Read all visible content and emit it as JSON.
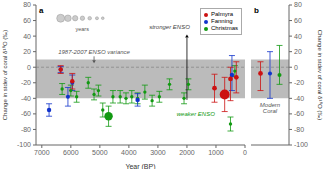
{
  "chart_data": [
    {
      "type": "scatter",
      "x_label": "Year (BP)",
      "y_label": "Change in stdev of coral δ¹⁸O (‰)",
      "panel_label": "a",
      "xlim": [
        7200,
        0
      ],
      "xticks": [
        7000,
        6000,
        5000,
        4000,
        3000,
        2000,
        1000,
        0
      ],
      "ylim": [
        -100,
        80
      ],
      "yticks": [
        -100,
        -80,
        -60,
        -40,
        -20,
        0,
        20,
        40,
        60,
        80
      ],
      "grid": false,
      "legend": "upper right",
      "series": [
        {
          "name": "Palmyra",
          "color": "#cc1111",
          "x": [
            6350,
            5950,
            1050,
            700,
            500,
            300
          ],
          "values": [
            -3,
            -18,
            -27,
            -35,
            -15,
            -13
          ],
          "yerr_lo": [
            5,
            10,
            18,
            22,
            28,
            20
          ],
          "yerr_hi": [
            5,
            10,
            18,
            22,
            15,
            20
          ],
          "size": [
            18,
            18,
            22,
            130,
            22,
            22
          ]
        },
        {
          "name": "Fanning",
          "color": "#1133cc",
          "x": [
            6750,
            6350,
            6100,
            5950,
            3700,
            450
          ],
          "values": [
            -55,
            -3,
            -38,
            -20,
            -42,
            -10
          ],
          "yerr_lo": [
            8,
            4,
            12,
            10,
            8,
            20
          ],
          "yerr_hi": [
            8,
            4,
            12,
            10,
            8,
            25
          ],
          "size": [
            18,
            14,
            14,
            14,
            18,
            18
          ]
        },
        {
          "name": "Christmas",
          "color": "#119911",
          "x": [
            6300,
            6000,
            5800,
            5400,
            5200,
            5050,
            4900,
            4700,
            4550,
            4300,
            4100,
            3900,
            3700,
            3450,
            3200,
            2950,
            2600,
            2100,
            1950,
            500,
            350
          ],
          "values": [
            -28,
            -30,
            -38,
            -20,
            -35,
            -30,
            -55,
            -63,
            -38,
            -38,
            -40,
            -38,
            -40,
            -32,
            -43,
            -38,
            -22,
            -40,
            -22,
            -73,
            -5
          ],
          "yerr_lo": [
            7,
            7,
            7,
            7,
            7,
            7,
            9,
            13,
            8,
            8,
            7,
            8,
            7,
            9,
            7,
            7,
            7,
            7,
            7,
            9,
            7
          ],
          "yerr_hi": [
            7,
            7,
            7,
            7,
            7,
            7,
            9,
            13,
            8,
            8,
            7,
            8,
            7,
            9,
            7,
            7,
            7,
            7,
            7,
            9,
            7
          ],
          "size": [
            8,
            8,
            8,
            8,
            8,
            8,
            8,
            90,
            8,
            8,
            8,
            8,
            8,
            8,
            8,
            8,
            8,
            8,
            8,
            8,
            8
          ]
        }
      ],
      "band": {
        "lo": -40,
        "hi": 10,
        "color": "#bbbbbb"
      },
      "hline": 0,
      "arrows": [
        {
          "x_from": 2000,
          "y_from": -42,
          "x_to": 2000,
          "y_to": 42,
          "color": "#000000"
        },
        {
          "x_from": 5200,
          "y_from": 14,
          "x_to": 5200,
          "y_to": 5,
          "color": "#555555"
        }
      ],
      "annotations": [
        {
          "text": "stronger ENSO",
          "x": 1900,
          "y": 47,
          "color": "#444444"
        },
        {
          "text": "weaker ENSO",
          "x": 2350,
          "y": -60,
          "color": "#119911"
        },
        {
          "text": "1987-2007 ENSO variance",
          "x": 5200,
          "y": 14,
          "color": "#555555"
        }
      ],
      "size_legend": {
        "label": "years",
        "x": [
          4900,
          5100,
          5350,
          5600,
          5850,
          6100,
          6350
        ],
        "sizes": [
          4,
          6,
          10,
          18,
          30,
          50,
          80
        ],
        "y": 63,
        "label_y": 52,
        "color": "#cccccc"
      }
    },
    {
      "type": "scatter",
      "y_label": "Change in stdev of coral δ¹⁸O (‰)",
      "panel_label": "b",
      "xlim": [
        0,
        1
      ],
      "xticks": [],
      "ylim": [
        -100,
        80
      ],
      "yticks": [
        -100,
        -80,
        -60,
        -40,
        -20,
        0,
        20,
        40,
        60,
        80
      ],
      "tick_labels": "y",
      "grid": false,
      "series": [
        {
          "name": "Palmyra",
          "color": "#cc1111",
          "x": [
            0.25
          ],
          "values": [
            -8
          ],
          "yerr_lo": [
            22
          ],
          "yerr_hi": [
            15
          ],
          "size": [
            8
          ]
        },
        {
          "name": "Fanning",
          "color": "#1133cc",
          "x": [
            0.5
          ],
          "values": [
            -8
          ],
          "yerr_lo": [
            32
          ],
          "yerr_hi": [
            28
          ],
          "size": [
            5
          ]
        },
        {
          "name": "Christmas",
          "color": "#119911",
          "x": [
            0.75
          ],
          "values": [
            -10
          ],
          "yerr_lo": [
            12
          ],
          "yerr_hi": [
            38
          ],
          "size": [
            5
          ]
        }
      ],
      "band": {
        "lo": -40,
        "hi": 10,
        "color": "#bbbbbb"
      },
      "hline": 0,
      "annotations": [
        {
          "text": "Modern\nCoral",
          "x": 0.5,
          "y": -62,
          "color": "#555555"
        }
      ]
    }
  ]
}
